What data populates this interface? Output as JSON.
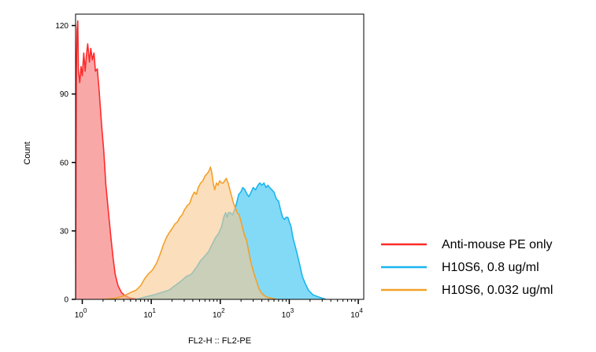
{
  "chart_data": {
    "type": "area",
    "xscale": "log",
    "xlim": [
      0.8,
      12000
    ],
    "ylim": [
      0,
      125
    ],
    "xlabel": "FL2-H :: FL2-PE",
    "ylabel": "Count",
    "yticks": [
      "0",
      "30",
      "60",
      "90",
      "120"
    ],
    "ytick_values": [
      0,
      30,
      60,
      90,
      120
    ],
    "xticks": [
      {
        "value": 1,
        "base": "10",
        "exp": "0"
      },
      {
        "value": 10,
        "base": "10",
        "exp": "1"
      },
      {
        "value": 100,
        "base": "10",
        "exp": "2"
      },
      {
        "value": 1000,
        "base": "10",
        "exp": "3"
      },
      {
        "value": 10000,
        "base": "10",
        "exp": "4"
      }
    ],
    "legend_position": "bottom-right",
    "grid": false,
    "series": [
      {
        "name": "Anti-mouse PE only",
        "color": "#ff2a2a",
        "fill": "#f89292",
        "points": [
          [
            0.8,
            0
          ],
          [
            0.81,
            60
          ],
          [
            0.82,
            100
          ],
          [
            0.84,
            118
          ],
          [
            0.86,
            122
          ],
          [
            0.88,
            100
          ],
          [
            0.92,
            95
          ],
          [
            0.96,
            102
          ],
          [
            1.0,
            98
          ],
          [
            1.05,
            108
          ],
          [
            1.1,
            100
          ],
          [
            1.15,
            107
          ],
          [
            1.2,
            112
          ],
          [
            1.27,
            104
          ],
          [
            1.33,
            110
          ],
          [
            1.4,
            105
          ],
          [
            1.48,
            108
          ],
          [
            1.55,
            100
          ],
          [
            1.65,
            101
          ],
          [
            1.75,
            92
          ],
          [
            1.9,
            77
          ],
          [
            2.05,
            65
          ],
          [
            2.2,
            50
          ],
          [
            2.4,
            38
          ],
          [
            2.6,
            27
          ],
          [
            2.8,
            18
          ],
          [
            3.0,
            11
          ],
          [
            3.3,
            6
          ],
          [
            3.7,
            3
          ],
          [
            4.2,
            1.5
          ],
          [
            5.0,
            0.5
          ],
          [
            6.5,
            0
          ]
        ]
      },
      {
        "name": "H10S6, 0.8 ug/ml",
        "color": "#19b6ee",
        "fill": "#6dd4f5",
        "points": [
          [
            6.0,
            0
          ],
          [
            8.0,
            1
          ],
          [
            11,
            2
          ],
          [
            14,
            3
          ],
          [
            18,
            4
          ],
          [
            22,
            6
          ],
          [
            27,
            8
          ],
          [
            32,
            10
          ],
          [
            38,
            11
          ],
          [
            45,
            14
          ],
          [
            52,
            17
          ],
          [
            60,
            19
          ],
          [
            68,
            21
          ],
          [
            76,
            24
          ],
          [
            85,
            27
          ],
          [
            95,
            29
          ],
          [
            105,
            32
          ],
          [
            112,
            36
          ],
          [
            120,
            38
          ],
          [
            126,
            36
          ],
          [
            132,
            38
          ],
          [
            140,
            38
          ],
          [
            150,
            37
          ],
          [
            160,
            39
          ],
          [
            172,
            42
          ],
          [
            185,
            46
          ],
          [
            198,
            47
          ],
          [
            212,
            49
          ],
          [
            228,
            48
          ],
          [
            245,
            46
          ],
          [
            260,
            45
          ],
          [
            280,
            47
          ],
          [
            300,
            49
          ],
          [
            325,
            48
          ],
          [
            350,
            50
          ],
          [
            375,
            51
          ],
          [
            400,
            50
          ],
          [
            430,
            51
          ],
          [
            460,
            49
          ],
          [
            490,
            50
          ],
          [
            520,
            49
          ],
          [
            560,
            48
          ],
          [
            600,
            47
          ],
          [
            650,
            44
          ],
          [
            700,
            43
          ],
          [
            750,
            39
          ],
          [
            800,
            36
          ],
          [
            850,
            35
          ],
          [
            900,
            36
          ],
          [
            950,
            36
          ],
          [
            1000,
            34
          ],
          [
            1060,
            32
          ],
          [
            1130,
            27
          ],
          [
            1200,
            24
          ],
          [
            1300,
            20
          ],
          [
            1420,
            15
          ],
          [
            1550,
            10
          ],
          [
            1700,
            7
          ],
          [
            1900,
            4
          ],
          [
            2200,
            2
          ],
          [
            2700,
            1
          ],
          [
            3400,
            0
          ]
        ]
      },
      {
        "name": "H10S6, 0.032 ug/ml",
        "color": "#f2a12a",
        "fill": "#f9c88f",
        "points": [
          [
            2.0,
            0
          ],
          [
            3.0,
            0.5
          ],
          [
            4.0,
            1.5
          ],
          [
            5.0,
            3
          ],
          [
            6.0,
            4
          ],
          [
            7.0,
            6
          ],
          [
            8.0,
            9
          ],
          [
            9.0,
            11
          ],
          [
            10.5,
            13
          ],
          [
            12.0,
            16
          ],
          [
            13.5,
            20
          ],
          [
            15,
            24
          ],
          [
            16.5,
            27
          ],
          [
            18,
            29
          ],
          [
            20,
            31
          ],
          [
            22,
            33
          ],
          [
            24,
            34
          ],
          [
            26,
            36
          ],
          [
            28,
            37
          ],
          [
            30,
            39
          ],
          [
            33,
            41
          ],
          [
            36,
            42
          ],
          [
            39,
            45
          ],
          [
            42,
            47
          ],
          [
            45,
            46
          ],
          [
            48,
            49
          ],
          [
            52,
            51
          ],
          [
            56,
            52
          ],
          [
            60,
            54
          ],
          [
            64,
            55
          ],
          [
            68,
            56
          ],
          [
            72,
            58
          ],
          [
            75,
            56
          ],
          [
            79,
            51
          ],
          [
            83,
            48
          ],
          [
            88,
            51
          ],
          [
            93,
            50
          ],
          [
            98,
            52
          ],
          [
            104,
            51
          ],
          [
            110,
            51
          ],
          [
            116,
            52
          ],
          [
            122,
            53
          ],
          [
            130,
            51
          ],
          [
            138,
            48
          ],
          [
            147,
            45
          ],
          [
            156,
            42
          ],
          [
            166,
            40
          ],
          [
            176,
            38
          ],
          [
            188,
            37
          ],
          [
            200,
            34
          ],
          [
            212,
            31
          ],
          [
            225,
            28
          ],
          [
            240,
            26
          ],
          [
            255,
            22
          ],
          [
            270,
            18
          ],
          [
            290,
            14
          ],
          [
            310,
            11
          ],
          [
            335,
            8
          ],
          [
            360,
            5
          ],
          [
            390,
            3
          ],
          [
            420,
            2
          ],
          [
            470,
            1
          ],
          [
            550,
            0.5
          ],
          [
            650,
            0
          ]
        ]
      }
    ]
  }
}
